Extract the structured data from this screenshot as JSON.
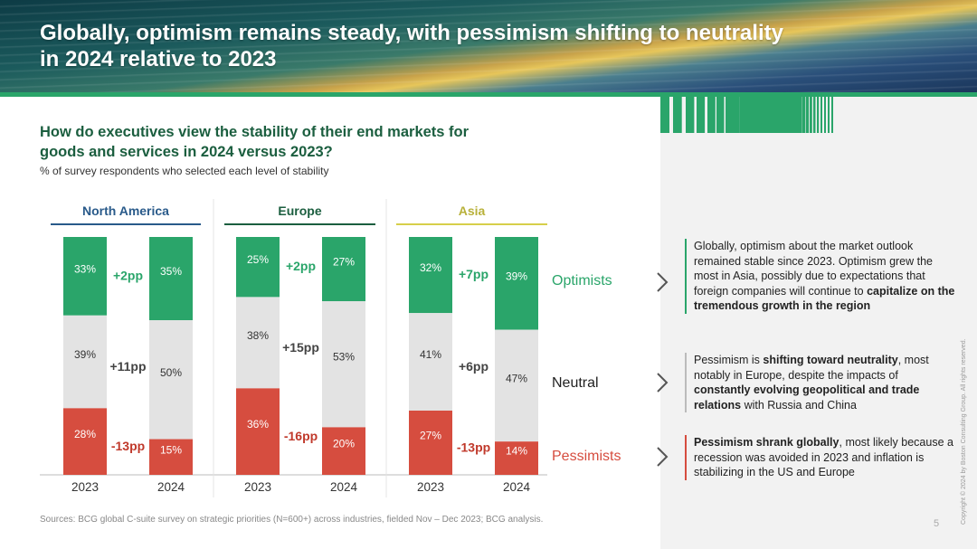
{
  "header": {
    "title_line1": "Globally, optimism remains steady, with pessimism shifting to neutrality",
    "title_line2": "in 2024 relative to 2023"
  },
  "question": {
    "line1": "How do executives view the stability of their end markets for",
    "line2": "goods and services in 2024 versus 2023?"
  },
  "subtitle": "% of survey respondents who selected each level of stability",
  "colors": {
    "optimists": "#2aa56a",
    "neutral": "#e3e3e3",
    "pessimists": "#d64d3f",
    "north_america": "#295a8a",
    "europe": "#1b5e3f",
    "asia": "#d6cf4a"
  },
  "chart_data": {
    "type": "bar",
    "stacked": true,
    "ylim": [
      0,
      100
    ],
    "categories": [
      "2023",
      "2024"
    ],
    "segments": [
      "Pessimists",
      "Neutral",
      "Optimists"
    ],
    "segment_labels": {
      "optimists": "Optimists",
      "neutral": "Neutral",
      "pessimists": "Pessimists"
    },
    "panels": [
      {
        "region": "North America",
        "bars": [
          {
            "year": "2023",
            "pessimists": 28,
            "neutral": 39,
            "optimists": 33
          },
          {
            "year": "2024",
            "pessimists": 15,
            "neutral": 50,
            "optimists": 35
          }
        ],
        "changes": {
          "optimists": "+2pp",
          "neutral": "+11pp",
          "pessimists": "-13pp"
        }
      },
      {
        "region": "Europe",
        "bars": [
          {
            "year": "2023",
            "pessimists": 36,
            "neutral": 38,
            "optimists": 25
          },
          {
            "year": "2024",
            "pessimists": 20,
            "neutral": 53,
            "optimists": 27
          }
        ],
        "changes": {
          "optimists": "+2pp",
          "neutral": "+15pp",
          "pessimists": "-16pp"
        }
      },
      {
        "region": "Asia",
        "bars": [
          {
            "year": "2023",
            "pessimists": 27,
            "neutral": 41,
            "optimists": 32
          },
          {
            "year": "2024",
            "pessimists": 14,
            "neutral": 47,
            "optimists": 39
          }
        ],
        "changes": {
          "optimists": "+7pp",
          "neutral": "+6pp",
          "pessimists": "-13pp"
        }
      }
    ]
  },
  "notes": {
    "optimists": {
      "text1": "Globally, optimism about the market outlook remained stable since 2023. Optimism grew the most in Asia, possibly due to expectations that foreign companies will continue to ",
      "bold1": "capitalize on the tremendous growth in the region"
    },
    "neutral": {
      "text1": "Pessimism is ",
      "bold1": "shifting toward neutrality",
      "text2": ", most notably in Europe, despite the impacts of ",
      "bold2": "constantly evolving geopolitical and trade relations",
      "text3": " with Russia and China"
    },
    "pessimists": {
      "bold1": "Pessimism shrank globally",
      "text1": ", most likely because a recession was avoided in 2023 and inflation is stabilizing in the US and Europe"
    }
  },
  "source": "Sources: BCG global C-suite survey on strategic priorities (N=600+) across industries, fielded Nov – Dec 2023; BCG analysis.",
  "page_number": "5",
  "copyright": "Copyright © 2024 by Boston Consulting Group. All rights reserved."
}
